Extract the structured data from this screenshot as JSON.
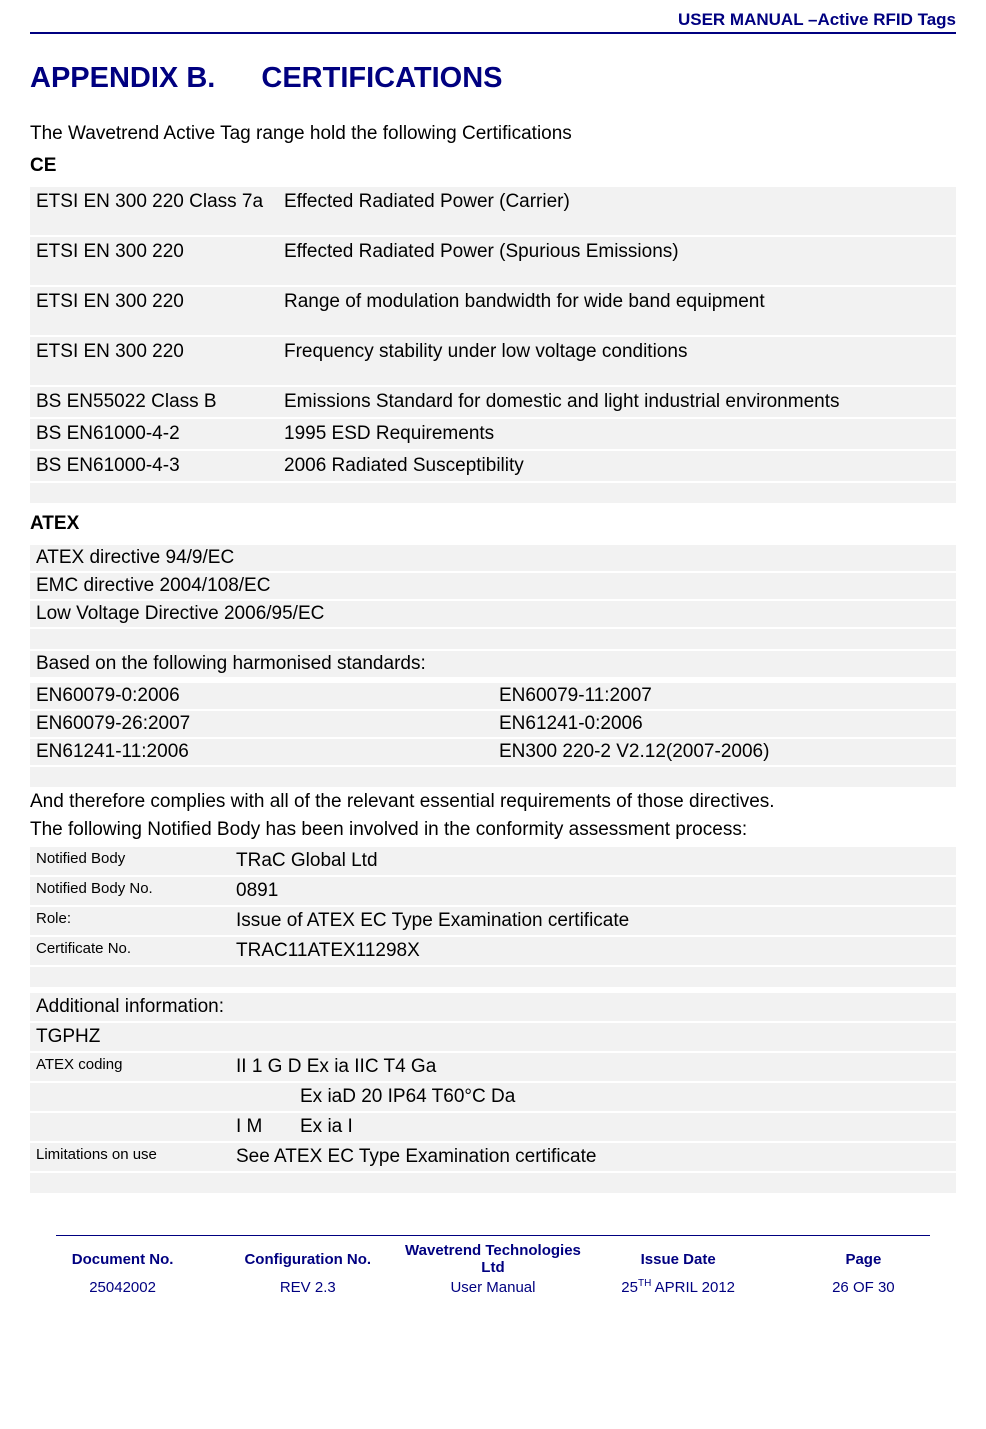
{
  "header": {
    "title": "USER MANUAL –Active RFID Tags"
  },
  "appendix": {
    "label": "APPENDIX B.",
    "title": "CERTIFICATIONS"
  },
  "intro": "The Wavetrend Active Tag range hold the following Certifications",
  "ce": {
    "head": "CE",
    "rows": [
      {
        "c1": "ETSI EN 300 220 Class 7a",
        "c2": "Effected Radiated Power (Carrier)",
        "tall": true
      },
      {
        "c1": "ETSI EN 300 220",
        "c2": "Effected Radiated Power (Spurious Emissions)",
        "tall": true
      },
      {
        "c1": "ETSI EN 300 220",
        "c2": "Range of modulation bandwidth for wide band equipment",
        "tall": true
      },
      {
        "c1": "ETSI EN 300 220",
        "c2": "Frequency stability under low voltage conditions",
        "tall": true
      },
      {
        "c1": "BS EN55022 Class B",
        "c2": "Emissions Standard for domestic and light industrial environments",
        "tall": false
      },
      {
        "c1": "BS EN61000-4-2",
        "c2": "1995 ESD Requirements",
        "tall": false
      },
      {
        "c1": "BS EN61000-4-3",
        "c2": "2006 Radiated Susceptibility",
        "tall": false
      }
    ]
  },
  "atex": {
    "head": "ATEX",
    "directives": [
      "ATEX directive 94/9/EC",
      "EMC directive 2004/108/EC",
      "Low Voltage Directive 2006/95/EC"
    ],
    "standards_intro": "Based on the following harmonised standards:",
    "standards": [
      {
        "l": "EN60079-0:2006",
        "r": "EN60079-11:2007"
      },
      {
        "l": "EN60079-26:2007",
        "r": "EN61241-0:2006"
      },
      {
        "l": "EN61241-11:2006",
        "r": "EN300 220-2 V2.12(2007-2006)"
      }
    ],
    "complies": "And therefore complies with all of the relevant essential requirements of those directives.",
    "notified_intro": "The following Notified Body has been involved in the conformity assessment process:",
    "notified": [
      {
        "label": "Notified Body",
        "value": "TRaC Global Ltd"
      },
      {
        "label": "Notified Body No.",
        "value": "0891"
      },
      {
        "label": "Role:",
        "value": "Issue of ATEX EC Type Examination certificate"
      },
      {
        "label": "Certificate No.",
        "value": "TRAC11ATEX11298X"
      }
    ]
  },
  "additional": {
    "head": "Additional information:",
    "tgphz": "TGPHZ",
    "coding_label": "ATEX coding",
    "coding_lines": [
      "II 1 G D Ex ia IIC T4 Ga",
      "Ex iaD 20 IP64 T60°C Da"
    ],
    "coding_line3_c1": "I M",
    "coding_line3_c2": "Ex ia I",
    "limitations_label": "Limitations on use",
    "limitations_value": "See ATEX EC Type Examination certificate"
  },
  "footer": {
    "heads": [
      "Document No.",
      "Configuration No.",
      "Wavetrend Technologies Ltd",
      "Issue Date",
      "Page"
    ],
    "vals": [
      "25042002",
      "REV 2.3",
      "User Manual",
      "25TH APRIL 2012",
      "26 OF 30"
    ],
    "issue_date_main": "25",
    "issue_date_sup": "TH",
    "issue_date_rest": " APRIL 2012"
  },
  "colors": {
    "brand": "#000080",
    "shade": "#f2f2f2",
    "text": "#000000",
    "bg": "#ffffff"
  },
  "fonts": {
    "body_size_pt": 14,
    "small_size_pt": 11,
    "h1_size_pt": 22
  }
}
